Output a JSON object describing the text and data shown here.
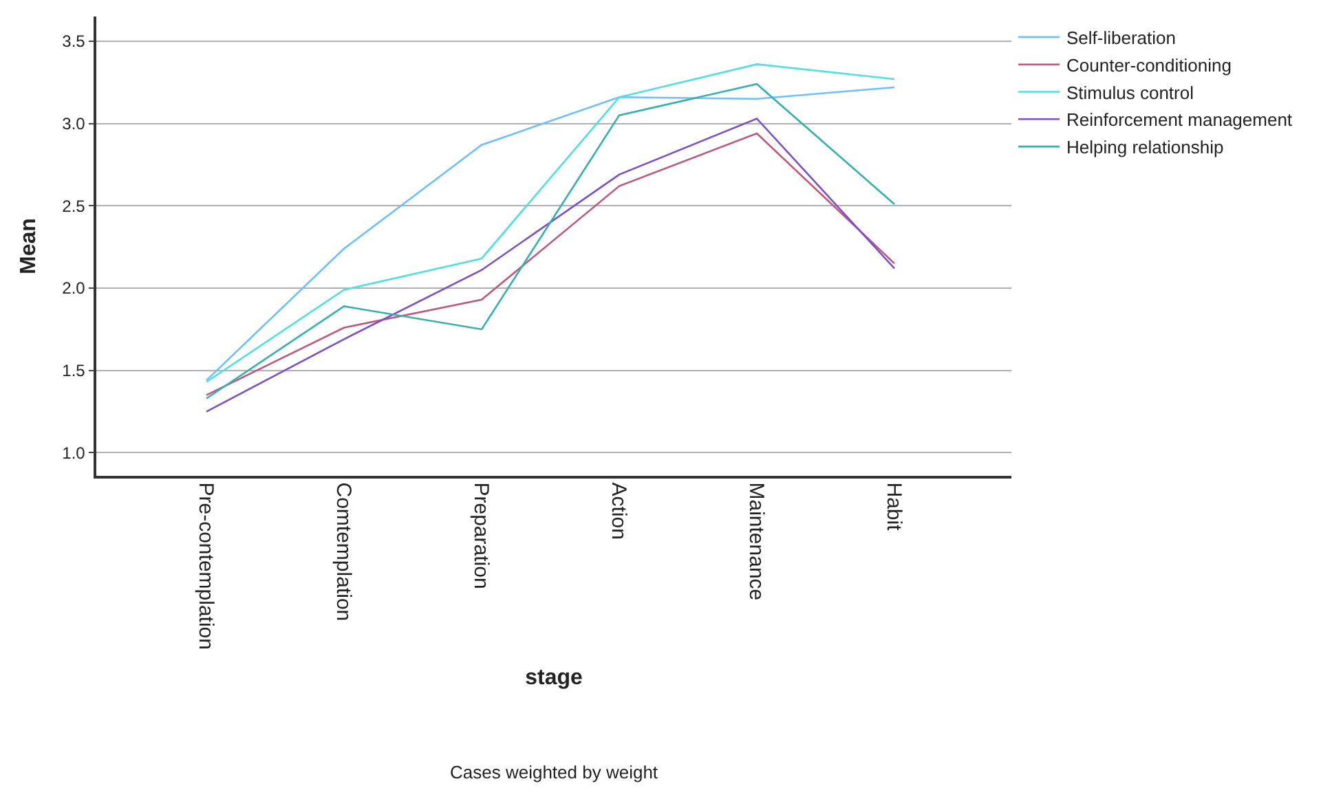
{
  "chart_data": {
    "type": "line",
    "xlabel": "stage",
    "ylabel": "Mean",
    "categories": [
      "Pre-contemplation",
      "Comtemplation",
      "Preparation",
      "Action",
      "Maintenance",
      "Habit"
    ],
    "series": [
      {
        "name": "Self-liberation",
        "color": "#6cc0ff",
        "values": [
          1.44,
          2.24,
          2.87,
          3.16,
          3.15,
          3.22
        ]
      },
      {
        "name": "Counter-conditioning",
        "color": "#c0587e",
        "values": [
          1.35,
          1.76,
          1.93,
          2.62,
          2.94,
          2.15
        ]
      },
      {
        "name": "Stimulus control",
        "color": "#4fe0e0",
        "values": [
          1.43,
          1.99,
          2.18,
          3.16,
          3.36,
          3.27
        ]
      },
      {
        "name": "Reinforcement management",
        "color": "#7b4fc8",
        "values": [
          1.25,
          1.69,
          2.11,
          2.69,
          3.03,
          2.12
        ]
      },
      {
        "name": "Helping relationship",
        "color": "#33b0b0",
        "values": [
          1.33,
          1.89,
          1.75,
          3.05,
          3.24,
          2.51
        ]
      }
    ],
    "ylim": [
      0.86,
      3.65
    ],
    "yticks": [
      {
        "value": 1.0,
        "label": "1.0"
      },
      {
        "value": 1.5,
        "label": "1.5"
      },
      {
        "value": 2.0,
        "label": "2.0"
      },
      {
        "value": 2.5,
        "label": "2.5"
      },
      {
        "value": 3.0,
        "label": "3.0"
      },
      {
        "value": 3.5,
        "label": "3.5"
      }
    ],
    "grid": "y",
    "legend": "top right",
    "marker": "none",
    "line_style": "solid",
    "annotations": [
      "Cases weighted by weight"
    ]
  }
}
